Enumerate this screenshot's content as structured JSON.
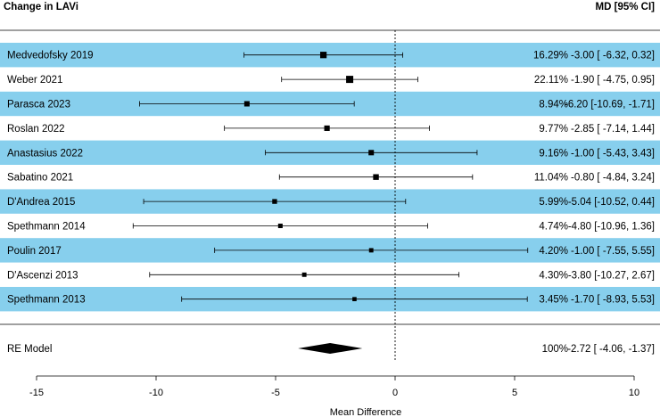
{
  "chart_data": {
    "type": "forest",
    "header_left": "Change in LAVi",
    "header_right": "MD [95% CI]",
    "xlabel": "Mean Difference",
    "xlim": [
      -15,
      10
    ],
    "xticks": [
      -15,
      -10,
      -5,
      0,
      5,
      10
    ],
    "reference_line": 0,
    "colors": {
      "band": "#87cfed",
      "line": "#000000"
    },
    "studies": [
      {
        "name": "Medvedofsky 2019",
        "weight": "16.29%",
        "md": -3.0,
        "lower": -6.32,
        "upper": 0.32,
        "ci_text": "-3.00 [ -6.32,  0.32]"
      },
      {
        "name": "Weber 2021",
        "weight": "22.11%",
        "md": -1.9,
        "lower": -4.75,
        "upper": 0.95,
        "ci_text": "-1.90 [ -4.75,  0.95]"
      },
      {
        "name": "Parasca 2023",
        "weight": "8.94%",
        "md": -6.2,
        "lower": -10.69,
        "upper": -1.71,
        "ci_text": "-6.20 [-10.69, -1.71]"
      },
      {
        "name": "Roslan 2022",
        "weight": "9.77%",
        "md": -2.85,
        "lower": -7.14,
        "upper": 1.44,
        "ci_text": "-2.85 [ -7.14,  1.44]"
      },
      {
        "name": "Anastasius 2022",
        "weight": "9.16%",
        "md": -1.0,
        "lower": -5.43,
        "upper": 3.43,
        "ci_text": "-1.00 [ -5.43,  3.43]"
      },
      {
        "name": "Sabatino 2021",
        "weight": "11.04%",
        "md": -0.8,
        "lower": -4.84,
        "upper": 3.24,
        "ci_text": "-0.80 [ -4.84,  3.24]"
      },
      {
        "name": "D'Andrea 2015",
        "weight": "5.99%",
        "md": -5.04,
        "lower": -10.52,
        "upper": 0.44,
        "ci_text": "-5.04 [-10.52,  0.44]"
      },
      {
        "name": "Spethmann 2014",
        "weight": "4.74%",
        "md": -4.8,
        "lower": -10.96,
        "upper": 1.36,
        "ci_text": "-4.80 [-10.96,  1.36]"
      },
      {
        "name": "Poulin 2017",
        "weight": "4.20%",
        "md": -1.0,
        "lower": -7.55,
        "upper": 5.55,
        "ci_text": "-1.00 [ -7.55,  5.55]"
      },
      {
        "name": "D'Ascenzi 2013",
        "weight": "4.30%",
        "md": -3.8,
        "lower": -10.27,
        "upper": 2.67,
        "ci_text": "-3.80 [-10.27,  2.67]"
      },
      {
        "name": "Spethmann 2013",
        "weight": "3.45%",
        "md": -1.7,
        "lower": -8.93,
        "upper": 5.53,
        "ci_text": "-1.70 [ -8.93,  5.53]"
      }
    ],
    "summary": {
      "name": "RE Model",
      "weight": "100%",
      "md": -2.72,
      "lower": -4.06,
      "upper": -1.37,
      "ci_text": "-2.72 [ -4.06, -1.37]"
    }
  }
}
